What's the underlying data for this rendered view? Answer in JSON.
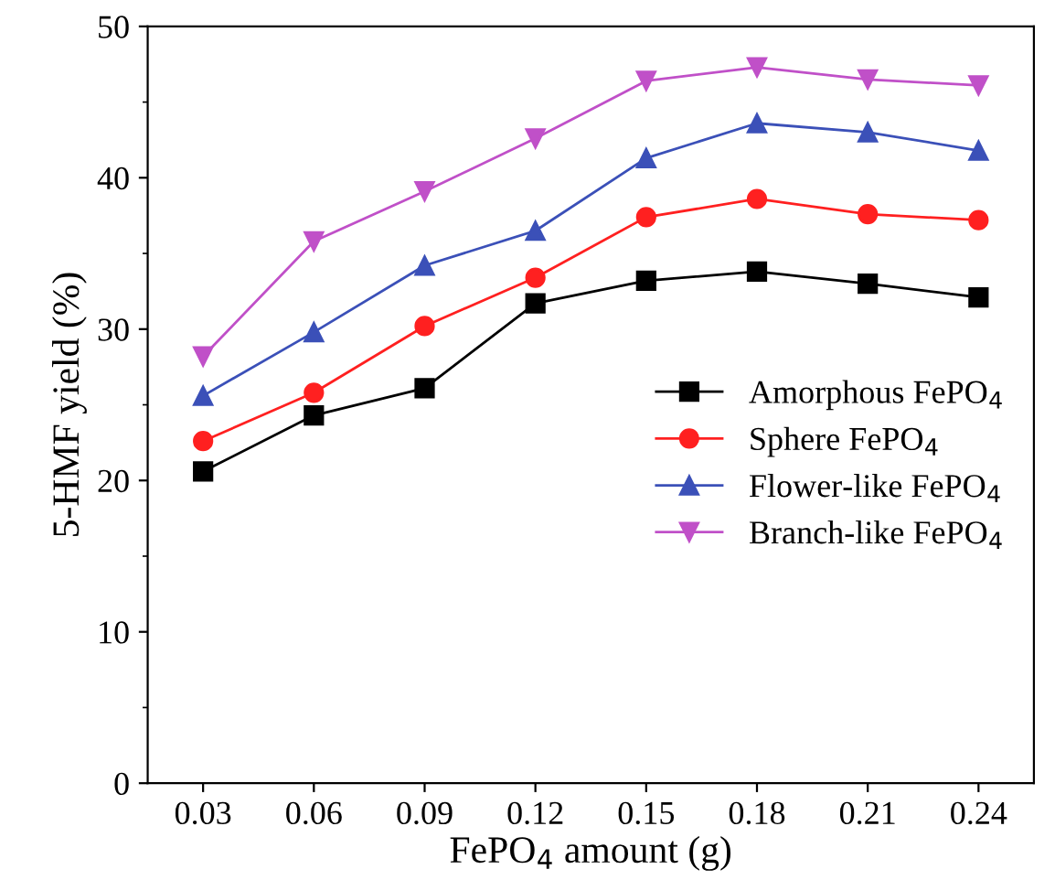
{
  "chart_data": {
    "type": "line",
    "xlabel": "FePO$_{4}$ amount (g)",
    "ylabel": "5-HMF yield (%)",
    "categories": [
      "0.03",
      "0.06",
      "0.09",
      "0.12",
      "0.15",
      "0.18",
      "0.21",
      "0.24"
    ],
    "ylim": [
      0,
      50
    ],
    "yticks": [
      0,
      10,
      20,
      30,
      40,
      50
    ],
    "grid": false,
    "legend": "right",
    "line_style": "solid",
    "series": [
      {
        "name": "Amorphous FePO$_{4}$",
        "color": "#000000",
        "marker": "square",
        "values": [
          20.6,
          24.3,
          26.1,
          31.7,
          33.2,
          33.8,
          33.0,
          32.1
        ]
      },
      {
        "name": "Sphere FePO$_{4}$",
        "color": "#ff2020",
        "marker": "circle",
        "values": [
          22.6,
          25.8,
          30.2,
          33.4,
          37.4,
          38.6,
          37.6,
          37.2
        ]
      },
      {
        "name": "Flower-like FePO$_{4}$",
        "color": "#3b50b8",
        "marker": "triangle",
        "values": [
          25.6,
          29.8,
          34.2,
          36.5,
          41.3,
          43.6,
          43.0,
          41.8
        ]
      },
      {
        "name": "Branch-like FePO$_{4}$",
        "color": "#c050c8",
        "marker": "triangle_down",
        "values": [
          28.2,
          35.8,
          39.1,
          42.6,
          46.4,
          47.3,
          46.5,
          46.1
        ]
      }
    ]
  }
}
